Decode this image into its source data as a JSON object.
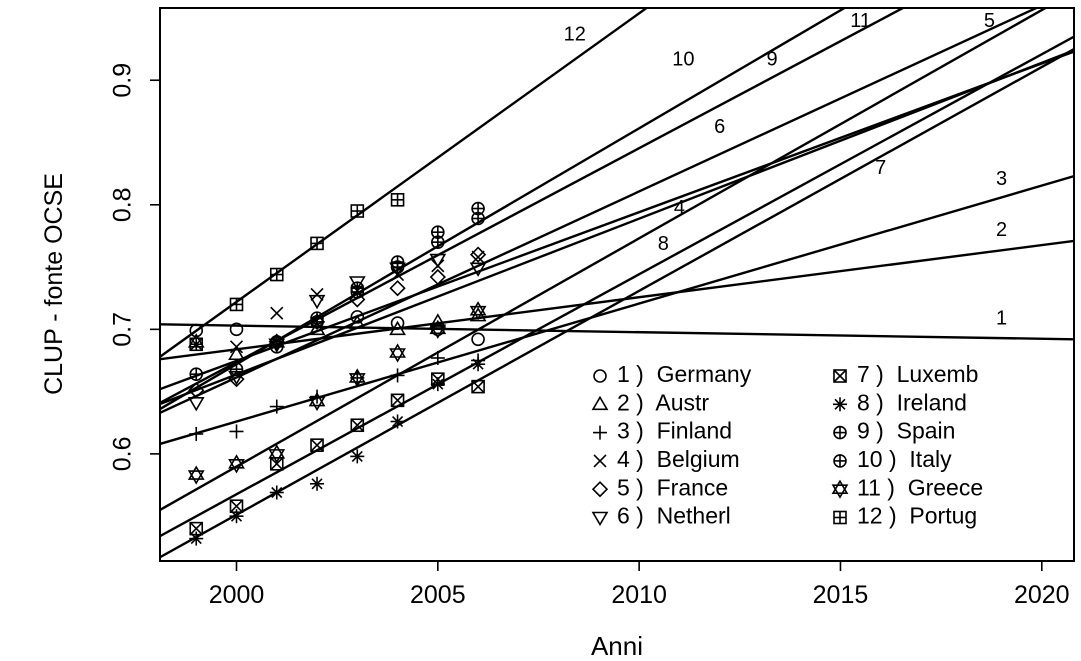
{
  "chart_data": {
    "type": "scatter",
    "title": "",
    "xlabel": "Anni",
    "ylabel": "CLUP - fonte OCSE",
    "xlim": [
      1998.1,
      2020.8
    ],
    "ylim": [
      0.514,
      0.958
    ],
    "xticks": [
      2000,
      2005,
      2010,
      2015,
      2020
    ],
    "yticks": [
      0.6,
      0.7,
      0.8,
      0.9
    ],
    "grid": false,
    "legend_position": "bottom-right",
    "series": [
      {
        "id": "1",
        "name": "Germany",
        "symbol": "circle",
        "points": [
          [
            1999,
            0.699
          ],
          [
            2000,
            0.7
          ],
          [
            2001,
            0.686
          ],
          [
            2002,
            0.706
          ],
          [
            2003,
            0.71
          ],
          [
            2004,
            0.705
          ],
          [
            2005,
            0.7
          ],
          [
            2006,
            0.692
          ]
        ],
        "trend": [
          [
            1998.1,
            0.704
          ],
          [
            2020.8,
            0.692
          ]
        ],
        "line_label": {
          "text": "1",
          "x": 2019,
          "y": 0.708
        }
      },
      {
        "id": "2",
        "name": "Austr",
        "symbol": "triangle",
        "points": [
          [
            1999,
            0.69
          ],
          [
            2000,
            0.68
          ],
          [
            2001,
            0.69
          ],
          [
            2002,
            0.7
          ],
          [
            2003,
            0.705
          ],
          [
            2004,
            0.7
          ],
          [
            2005,
            0.706
          ],
          [
            2006,
            0.711
          ]
        ],
        "trend": [
          [
            1998.1,
            0.676
          ],
          [
            2020.8,
            0.771
          ]
        ],
        "line_label": {
          "text": "2",
          "x": 2019,
          "y": 0.779
        }
      },
      {
        "id": "3",
        "name": "Finland",
        "symbol": "plus",
        "points": [
          [
            1999,
            0.616
          ],
          [
            2000,
            0.618
          ],
          [
            2001,
            0.638
          ],
          [
            2002,
            0.646
          ],
          [
            2003,
            0.661
          ],
          [
            2004,
            0.663
          ],
          [
            2005,
            0.677
          ],
          [
            2006,
            0.675
          ]
        ],
        "trend": [
          [
            1998.1,
            0.608
          ],
          [
            2020.8,
            0.823
          ]
        ],
        "line_label": {
          "text": "3",
          "x": 2019,
          "y": 0.82
        }
      },
      {
        "id": "4",
        "name": "Belgium",
        "symbol": "x",
        "points": [
          [
            1999,
            0.688
          ],
          [
            2000,
            0.686
          ],
          [
            2001,
            0.713
          ],
          [
            2002,
            0.728
          ],
          [
            2003,
            0.731
          ],
          [
            2004,
            0.744
          ],
          [
            2005,
            0.751
          ],
          [
            2006,
            0.758
          ]
        ],
        "trend": [
          [
            1998.1,
            0.652
          ],
          [
            2020.8,
            0.923
          ]
        ],
        "line_label": {
          "text": "4",
          "x": 2011,
          "y": 0.797
        }
      },
      {
        "id": "5",
        "name": "France",
        "symbol": "diamond",
        "points": [
          [
            1999,
            0.651
          ],
          [
            2000,
            0.66
          ],
          [
            2001,
            0.69
          ],
          [
            2002,
            0.706
          ],
          [
            2003,
            0.724
          ],
          [
            2004,
            0.733
          ],
          [
            2005,
            0.742
          ],
          [
            2006,
            0.76
          ]
        ],
        "trend": [
          [
            1998.1,
            0.633
          ],
          [
            2020.8,
            0.972
          ]
        ],
        "line_label": {
          "text": "5",
          "x": 2018.7,
          "y": 0.947
        }
      },
      {
        "id": "6",
        "name": "Netherl",
        "symbol": "triangle-down",
        "points": [
          [
            1999,
            0.641
          ],
          [
            2000,
            0.662
          ],
          [
            2001,
            0.688
          ],
          [
            2002,
            0.723
          ],
          [
            2003,
            0.738
          ],
          [
            2004,
            0.749
          ],
          [
            2005,
            0.756
          ],
          [
            2006,
            0.749
          ]
        ],
        "trend": [
          [
            1998.1,
            0.64
          ],
          [
            2020.8,
            0.924
          ]
        ],
        "line_label": {
          "text": "6",
          "x": 2012,
          "y": 0.862
        }
      },
      {
        "id": "7",
        "name": "Luxemb",
        "symbol": "boxed-x",
        "points": [
          [
            1999,
            0.54
          ],
          [
            2000,
            0.558
          ],
          [
            2001,
            0.592
          ],
          [
            2002,
            0.607
          ],
          [
            2003,
            0.623
          ],
          [
            2004,
            0.643
          ],
          [
            2005,
            0.66
          ],
          [
            2006,
            0.654
          ]
        ],
        "trend": [
          [
            1998.1,
            0.534
          ],
          [
            2020.8,
            0.935
          ]
        ],
        "line_label": {
          "text": "7",
          "x": 2016,
          "y": 0.829
        }
      },
      {
        "id": "8",
        "name": "Ireland",
        "symbol": "asterisk",
        "points": [
          [
            1999,
            0.532
          ],
          [
            2000,
            0.55
          ],
          [
            2001,
            0.569
          ],
          [
            2002,
            0.576
          ],
          [
            2003,
            0.598
          ],
          [
            2004,
            0.626
          ],
          [
            2005,
            0.656
          ],
          [
            2006,
            0.672
          ]
        ],
        "trend": [
          [
            1998.1,
            0.517
          ],
          [
            2020.8,
            0.925
          ]
        ],
        "line_label": {
          "text": "8",
          "x": 2010.6,
          "y": 0.768
        }
      },
      {
        "id": "9",
        "name": "Spain",
        "symbol": "circle-plus",
        "points": [
          [
            1999,
            0.664
          ],
          [
            2000,
            0.668
          ],
          [
            2001,
            0.69
          ],
          [
            2002,
            0.709
          ],
          [
            2003,
            0.73
          ],
          [
            2004,
            0.75
          ],
          [
            2005,
            0.77
          ],
          [
            2006,
            0.789
          ]
        ],
        "trend": [
          [
            1998.1,
            0.641
          ],
          [
            2020.8,
            1.031
          ]
        ],
        "line_label": {
          "text": "9",
          "x": 2013.3,
          "y": 0.916
        }
      },
      {
        "id": "10",
        "name": "Italy",
        "symbol": "circle-plus",
        "points": [
          [
            2002,
            0.706
          ],
          [
            2003,
            0.733
          ],
          [
            2004,
            0.754
          ],
          [
            2005,
            0.778
          ],
          [
            2006,
            0.797
          ]
        ],
        "trend": [
          [
            1998.1,
            0.636
          ],
          [
            2020.8,
            1.066
          ]
        ],
        "line_label": {
          "text": "10",
          "x": 2011.1,
          "y": 0.916
        }
      },
      {
        "id": "11",
        "name": "Greece",
        "symbol": "star",
        "points": [
          [
            1999,
            0.583
          ],
          [
            2000,
            0.592
          ],
          [
            2001,
            0.6
          ],
          [
            2002,
            0.642
          ],
          [
            2003,
            0.661
          ],
          [
            2004,
            0.681
          ],
          [
            2005,
            0.7
          ],
          [
            2006,
            0.715
          ]
        ],
        "trend": [
          [
            1998.1,
            0.555
          ],
          [
            2020.8,
            0.971
          ]
        ],
        "line_label": {
          "text": "11",
          "x": 2015.5,
          "y": 0.947
        }
      },
      {
        "id": "12",
        "name": "Portug",
        "symbol": "boxed-plus",
        "points": [
          [
            1999,
            0.688
          ],
          [
            2000,
            0.72
          ],
          [
            2001,
            0.744
          ],
          [
            2002,
            0.769
          ],
          [
            2003,
            0.795
          ],
          [
            2004,
            0.804
          ]
        ],
        "trend": [
          [
            1998.1,
            0.678
          ],
          [
            2020.8,
            1.204
          ]
        ],
        "line_label": {
          "text": "12",
          "x": 2008.4,
          "y": 0.936
        }
      }
    ],
    "legend": {
      "columns": [
        [
          "1 )  Germany",
          "2 )  Austr",
          "3 )  Finland",
          "4 )  Belgium",
          "5 )  France",
          "6 )  Netherl"
        ],
        [
          "7 )  Luxemb",
          "8 )  Ireland",
          "9 )  Spain",
          "10 )  Italy",
          "11 )  Greece",
          "12 )  Portug"
        ]
      ]
    }
  }
}
